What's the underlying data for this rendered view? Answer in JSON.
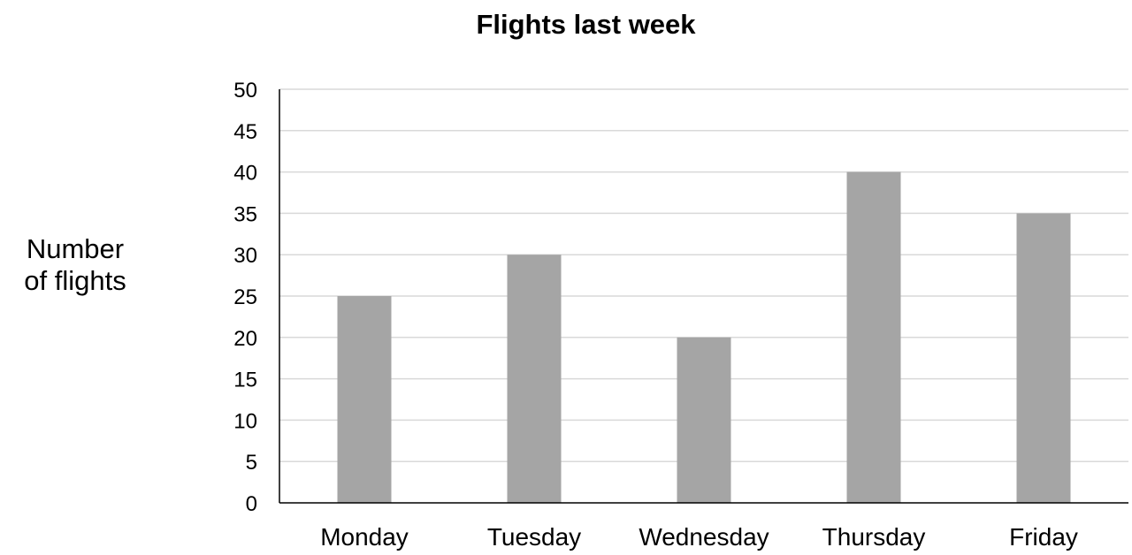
{
  "chart_data": {
    "type": "bar",
    "title": "Flights last week",
    "ylabel": [
      "Number",
      "of flights"
    ],
    "xlabel": "",
    "categories": [
      "Monday",
      "Tuesday",
      "Wednesday",
      "Thursday",
      "Friday"
    ],
    "values": [
      25,
      30,
      20,
      40,
      35
    ],
    "ylim": [
      0,
      50
    ],
    "yticks": [
      "0",
      "5",
      "10",
      "15",
      "20",
      "25",
      "30",
      "35",
      "40",
      "45",
      "50"
    ],
    "grid": true,
    "legend": "none",
    "colors": {
      "bar": "#a5a5a5",
      "grid": "#d9d9d9",
      "axis": "#000000",
      "text": "#000000"
    }
  }
}
